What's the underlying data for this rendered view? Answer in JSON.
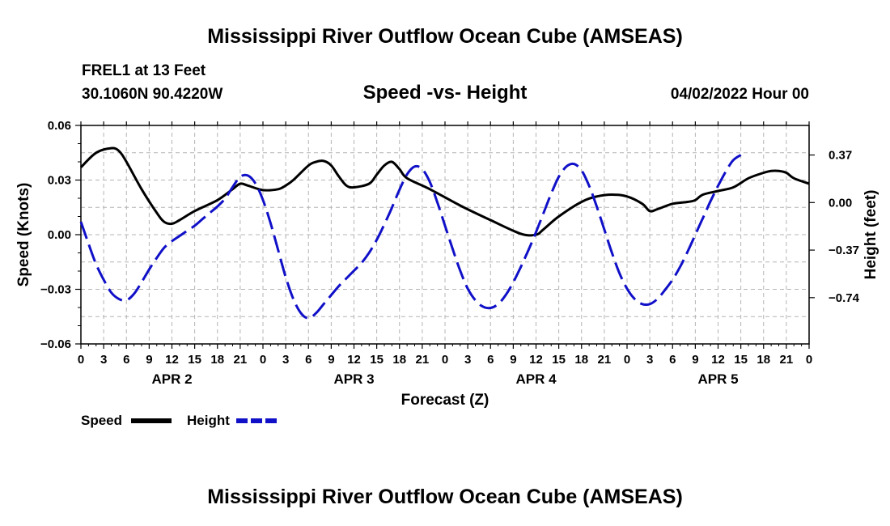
{
  "title": "Mississippi River Outflow Ocean Cube (AMSEAS)",
  "footer_title": "Mississippi River Outflow Ocean Cube (AMSEAS)",
  "station": "FREL1 at 13 Feet",
  "coordinates": "30.1060N  90.4220W",
  "subtitle": "Speed -vs- Height",
  "run_date": "04/02/2022 Hour 00",
  "legend": {
    "speed_label": "Speed",
    "height_label": "Height"
  },
  "colors": {
    "speed": "#000000",
    "height": "#1010c8",
    "grid": "#b4b4b4"
  },
  "chart_data": {
    "type": "line",
    "title": "Speed -vs- Height",
    "xlabel": "Forecast (Z)",
    "ylabel": "Speed (Knots)",
    "y2label": "Height (feet)",
    "x_range_hours": [
      0,
      96
    ],
    "ylim": [
      -0.06,
      0.06
    ],
    "y2lim": [
      -1.1,
      0.6
    ],
    "yticks": [
      -0.06,
      -0.03,
      0.0,
      0.03,
      0.06
    ],
    "ytick_labels": [
      "−0.06",
      "−0.03",
      "0.00",
      "0.03",
      "0.06"
    ],
    "y2ticks": [
      -0.74,
      -0.37,
      0.0,
      0.37
    ],
    "y2tick_labels": [
      "−0.74",
      "−0.37",
      "0.00",
      "0.37"
    ],
    "xticks_hours": [
      0,
      3,
      6,
      9,
      12,
      15,
      18,
      21,
      24,
      27,
      30,
      33,
      36,
      39,
      42,
      45,
      48,
      51,
      54,
      57,
      60,
      63,
      66,
      69,
      72,
      75,
      78,
      81,
      84,
      87,
      90,
      93,
      96
    ],
    "xtick_labels": [
      "0",
      "3",
      "6",
      "9",
      "12",
      "15",
      "18",
      "21",
      "0",
      "3",
      "6",
      "9",
      "12",
      "15",
      "18",
      "21",
      "0",
      "3",
      "6",
      "9",
      "12",
      "15",
      "18",
      "21",
      "0",
      "3",
      "6",
      "9",
      "12",
      "15",
      "18",
      "21",
      "0"
    ],
    "day_labels": [
      {
        "hour": 12,
        "label": "APR 2"
      },
      {
        "hour": 36,
        "label": "APR 3"
      },
      {
        "hour": 60,
        "label": "APR 4"
      },
      {
        "hour": 84,
        "label": "APR 5"
      }
    ],
    "grid": true,
    "series": [
      {
        "name": "Speed",
        "axis": "left",
        "style": "solid",
        "points": [
          [
            0,
            0.037
          ],
          [
            2,
            0.045
          ],
          [
            4,
            0.0475
          ],
          [
            5,
            0.046
          ],
          [
            6,
            0.04
          ],
          [
            8,
            0.025
          ],
          [
            10,
            0.012
          ],
          [
            11,
            0.007
          ],
          [
            12,
            0.006
          ],
          [
            13,
            0.008
          ],
          [
            15,
            0.013
          ],
          [
            18,
            0.019
          ],
          [
            20,
            0.025
          ],
          [
            21,
            0.028
          ],
          [
            22,
            0.027
          ],
          [
            24,
            0.0245
          ],
          [
            26,
            0.025
          ],
          [
            27,
            0.027
          ],
          [
            28,
            0.03
          ],
          [
            30,
            0.038
          ],
          [
            31,
            0.04
          ],
          [
            32,
            0.0405
          ],
          [
            33,
            0.038
          ],
          [
            34,
            0.032
          ],
          [
            35,
            0.027
          ],
          [
            36,
            0.026
          ],
          [
            38,
            0.028
          ],
          [
            39,
            0.033
          ],
          [
            40,
            0.038
          ],
          [
            41,
            0.04
          ],
          [
            42,
            0.036
          ],
          [
            43,
            0.031
          ],
          [
            46,
            0.025
          ],
          [
            50,
            0.016
          ],
          [
            54,
            0.008
          ],
          [
            58,
            0.0005
          ],
          [
            60,
            0.0
          ],
          [
            61,
            0.003
          ],
          [
            63,
            0.01
          ],
          [
            66,
            0.018
          ],
          [
            68,
            0.021
          ],
          [
            70,
            0.022
          ],
          [
            72,
            0.021
          ],
          [
            74,
            0.017
          ],
          [
            75,
            0.013
          ],
          [
            76,
            0.014
          ],
          [
            78,
            0.017
          ],
          [
            80,
            0.018
          ],
          [
            81,
            0.019
          ],
          [
            82,
            0.022
          ],
          [
            84,
            0.024
          ],
          [
            86,
            0.026
          ],
          [
            88,
            0.031
          ],
          [
            90,
            0.034
          ],
          [
            91,
            0.035
          ],
          [
            92,
            0.035
          ],
          [
            93,
            0.034
          ],
          [
            94,
            0.031
          ],
          [
            96,
            0.028
          ]
        ]
      },
      {
        "name": "Height",
        "axis": "right",
        "style": "dashed",
        "points": [
          [
            0,
            -0.15
          ],
          [
            1,
            -0.32
          ],
          [
            2,
            -0.48
          ],
          [
            3,
            -0.6
          ],
          [
            4,
            -0.7
          ],
          [
            5,
            -0.75
          ],
          [
            6,
            -0.76
          ],
          [
            7,
            -0.71
          ],
          [
            8,
            -0.62
          ],
          [
            9,
            -0.52
          ],
          [
            10,
            -0.43
          ],
          [
            11,
            -0.35
          ],
          [
            12,
            -0.3
          ],
          [
            13,
            -0.26
          ],
          [
            14,
            -0.22
          ],
          [
            15,
            -0.18
          ],
          [
            16,
            -0.13
          ],
          [
            17,
            -0.08
          ],
          [
            18,
            -0.03
          ],
          [
            19,
            0.03
          ],
          [
            20,
            0.12
          ],
          [
            21,
            0.2
          ],
          [
            22,
            0.21
          ],
          [
            23,
            0.15
          ],
          [
            24,
            0.02
          ],
          [
            25,
            -0.16
          ],
          [
            26,
            -0.37
          ],
          [
            27,
            -0.58
          ],
          [
            28,
            -0.75
          ],
          [
            29,
            -0.86
          ],
          [
            30,
            -0.9
          ],
          [
            31,
            -0.86
          ],
          [
            32,
            -0.79
          ],
          [
            33,
            -0.72
          ],
          [
            34,
            -0.65
          ],
          [
            35,
            -0.59
          ],
          [
            36,
            -0.53
          ],
          [
            37,
            -0.47
          ],
          [
            38,
            -0.39
          ],
          [
            39,
            -0.29
          ],
          [
            40,
            -0.17
          ],
          [
            41,
            -0.04
          ],
          [
            42,
            0.1
          ],
          [
            43,
            0.22
          ],
          [
            44,
            0.28
          ],
          [
            45,
            0.26
          ],
          [
            46,
            0.16
          ],
          [
            47,
            0.0
          ],
          [
            48,
            -0.18
          ],
          [
            49,
            -0.36
          ],
          [
            50,
            -0.53
          ],
          [
            51,
            -0.67
          ],
          [
            52,
            -0.76
          ],
          [
            53,
            -0.81
          ],
          [
            54,
            -0.82
          ],
          [
            55,
            -0.79
          ],
          [
            56,
            -0.72
          ],
          [
            57,
            -0.62
          ],
          [
            58,
            -0.5
          ],
          [
            59,
            -0.37
          ],
          [
            60,
            -0.23
          ],
          [
            61,
            -0.08
          ],
          [
            62,
            0.07
          ],
          [
            63,
            0.2
          ],
          [
            64,
            0.28
          ],
          [
            65,
            0.3
          ],
          [
            66,
            0.25
          ],
          [
            67,
            0.13
          ],
          [
            68,
            -0.03
          ],
          [
            69,
            -0.21
          ],
          [
            70,
            -0.39
          ],
          [
            71,
            -0.55
          ],
          [
            72,
            -0.67
          ],
          [
            73,
            -0.75
          ],
          [
            74,
            -0.79
          ],
          [
            75,
            -0.79
          ],
          [
            76,
            -0.75
          ],
          [
            77,
            -0.68
          ],
          [
            78,
            -0.6
          ],
          [
            79,
            -0.5
          ],
          [
            80,
            -0.38
          ],
          [
            81,
            -0.25
          ],
          [
            82,
            -0.12
          ],
          [
            83,
            0.01
          ],
          [
            84,
            0.13
          ],
          [
            85,
            0.24
          ],
          [
            86,
            0.33
          ],
          [
            87,
            0.37
          ]
        ]
      }
    ]
  }
}
